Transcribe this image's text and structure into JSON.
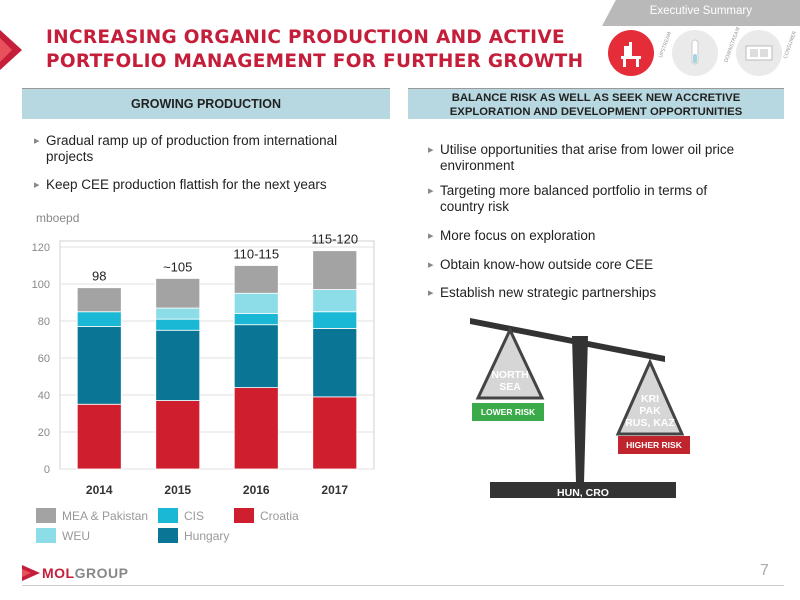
{
  "header": {
    "tab_label": "Executive Summary",
    "title_line1": "INCREASING ORGANIC PRODUCTION AND ACTIVE",
    "title_line2": "PORTFOLIO MANAGEMENT FOR FURTHER GROWTH",
    "icons": [
      {
        "name": "upstream-icon",
        "label": "UPSTREAM",
        "color": "#e52d3a"
      },
      {
        "name": "downstream-icon",
        "label": "DOWNSTREAM",
        "color": "#eaeaea"
      },
      {
        "name": "consumer-icon",
        "label": "CONSUMER",
        "color": "#eaeaea"
      }
    ]
  },
  "left": {
    "section_title": "GROWING PRODUCTION",
    "bullets": [
      "Gradual ramp up of production from international",
      "projects",
      "Keep CEE production flattish for the next years"
    ],
    "unit": "mboepd"
  },
  "right": {
    "section_line1": "BALANCE RISK AS WELL AS SEEK NEW ACCRETIVE",
    "section_line2": "EXPLORATION AND DEVELOPMENT OPPORTUNITIES",
    "bullets": [
      {
        "line1": "Utilise opportunities that arise from lower oil price",
        "line2": "environment"
      },
      {
        "line1": "Targeting more balanced portfolio in terms of",
        "line2": "country risk"
      },
      {
        "line1": "More focus on exploration",
        "line2": ""
      },
      {
        "line1": "Obtain know-how outside core CEE",
        "line2": ""
      },
      {
        "line1": "Establish new strategic partnerships",
        "line2": ""
      }
    ]
  },
  "scale": {
    "left_weight_line1": "NORTH",
    "left_weight_line2": "SEA",
    "right_weight_line1": "KRI",
    "right_weight_line2": "PAK",
    "right_weight_line3": "RUS, KAZ",
    "lower_risk": "LOWER RISK",
    "higher_risk": "HIGHER RISK",
    "base_label": "HUN, CRO",
    "colors": {
      "lower": "#3aaa4a",
      "higher": "#c0252e",
      "dark": "#333333"
    }
  },
  "chart_data": {
    "type": "bar",
    "stacked": true,
    "categories": [
      "2014",
      "2015",
      "2016",
      "2017"
    ],
    "ylim": [
      0,
      120
    ],
    "yticks": [
      0,
      20,
      40,
      60,
      80,
      100,
      120
    ],
    "total_labels": [
      "98",
      "~105",
      "110-115",
      "115-120"
    ],
    "series": [
      {
        "name": "Croatia",
        "color": "#cf1f2e",
        "values": [
          35,
          37,
          44,
          39
        ]
      },
      {
        "name": "Hungary",
        "color": "#0b7595",
        "values": [
          42,
          38,
          34,
          37
        ]
      },
      {
        "name": "CIS",
        "color": "#1ab8d4",
        "values": [
          8,
          6,
          6,
          9
        ]
      },
      {
        "name": "WEU",
        "color": "#8ddde8",
        "values": [
          0,
          6,
          11,
          12
        ]
      },
      {
        "name": "MEA & Pakistan",
        "color": "#a3a3a3",
        "values": [
          13,
          16,
          15,
          21
        ]
      }
    ],
    "legend": {
      "row1": [
        "MEA & Pakistan",
        "CIS",
        "Croatia"
      ],
      "row2": [
        "WEU",
        "Hungary"
      ]
    }
  },
  "footer": {
    "logo_part1": "MOL",
    "logo_part2": "GROUP",
    "page_number": "7"
  }
}
